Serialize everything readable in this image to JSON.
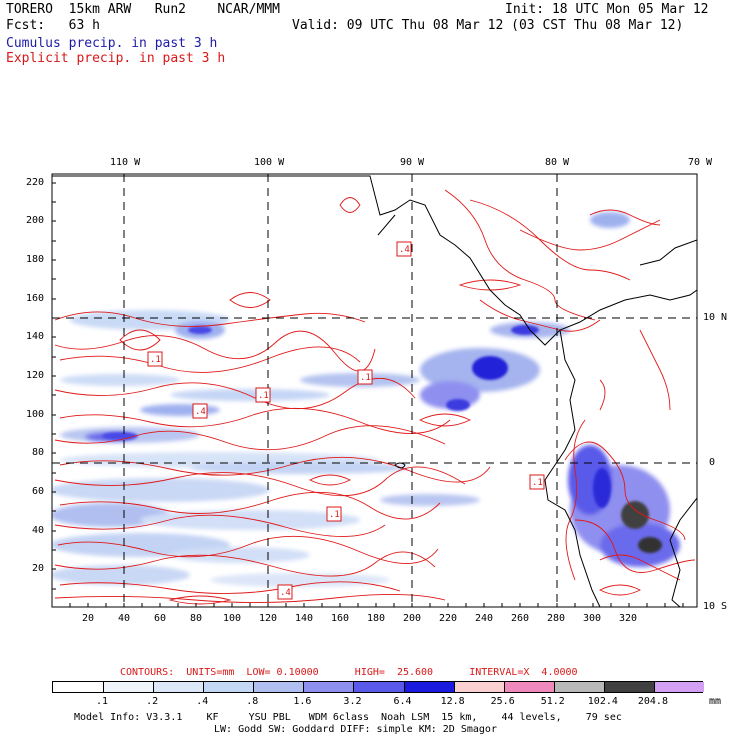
{
  "header": {
    "run_title": "TORERO  15km ARW   Run2    NCAR/MMM",
    "init": "Init: 18 UTC Mon 05 Mar 12",
    "fcst": "Fcst:   63 h",
    "valid": "Valid: 09 UTC Thu 08 Mar 12 (03 CST Thu 08 Mar 12)",
    "cumulus": "Cumulus precip. in past 3 h",
    "explicit": "Explicit precip. in past 3 h"
  },
  "map": {
    "lon_labels": [
      "110 W",
      "100 W",
      "90 W",
      "80 W",
      "70 W"
    ],
    "lat_labels": [
      "10 N",
      "0",
      "10 S"
    ],
    "y_ticks": [
      "220",
      "200",
      "180",
      "160",
      "140",
      "120",
      "100",
      "80",
      "60",
      "40",
      "20"
    ],
    "x_ticks": [
      "20",
      "40",
      "60",
      "80",
      "100",
      "120",
      "140",
      "160",
      "180",
      "200",
      "220",
      "240",
      "260",
      "280",
      "300",
      "320"
    ],
    "contour_labels": [
      ".4",
      ".1",
      ".1",
      ".4",
      ".1",
      ".1",
      ".1",
      ".4"
    ]
  },
  "contours_line": {
    "text": "CONTOURS:  UNITS=mm  LOW= 0.10000      HIGH=  25.600      INTERVAL=X  4.0000"
  },
  "legend": {
    "labels": [
      ".1",
      ".2",
      ".4",
      ".8",
      "1.6",
      "3.2",
      "6.4",
      "12.8",
      "25.6",
      "51.2",
      "102.4",
      "204.8"
    ],
    "colors": [
      "#ffffff",
      "#f0f5fb",
      "#dce8f8",
      "#c3d8f5",
      "#b0bff0",
      "#8f8ff0",
      "#5a5aea",
      "#1b1be0",
      "#fbd0d0",
      "#f08abd",
      "#b8b8b8",
      "#404040",
      "#d4a0f5"
    ],
    "unit": "mm"
  },
  "footer": {
    "line1": "Model Info: V3.3.1    KF     YSU PBL   WDM 6class  Noah LSM  15 km,    44 levels,    79 sec",
    "line2": "LW: Godd SW: Goddard DIFF: simple KM: 2D Smagor"
  }
}
